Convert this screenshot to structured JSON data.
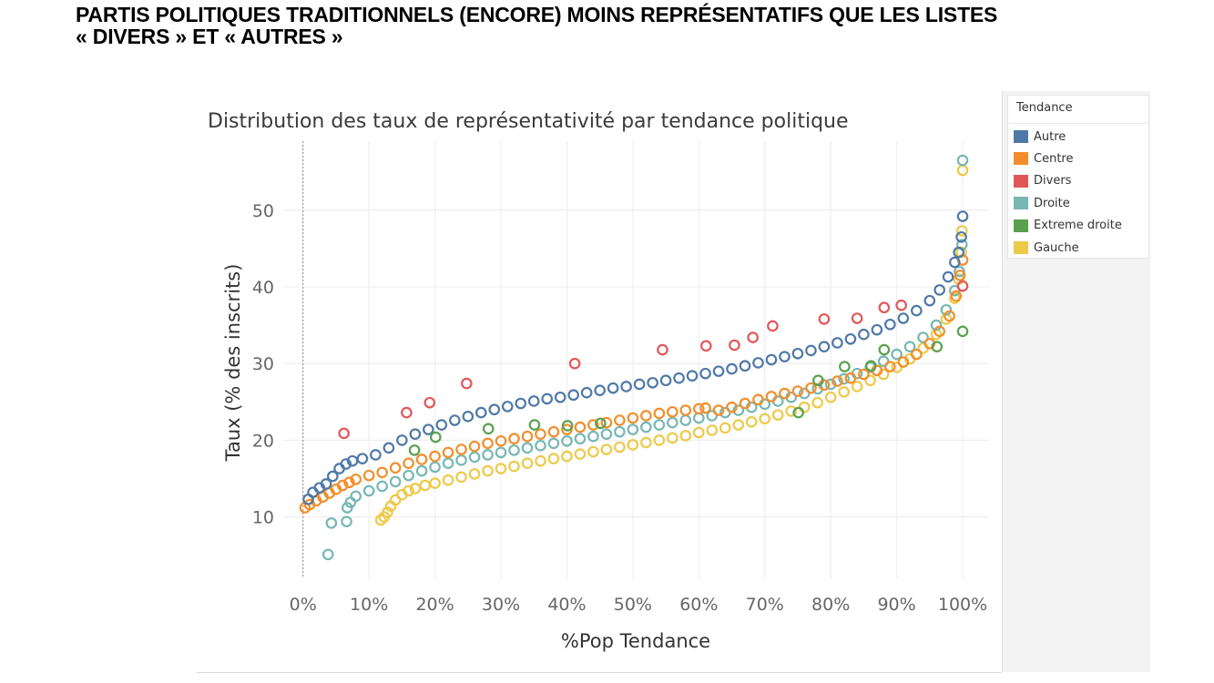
{
  "slide": {
    "title_line1": "PARTIS POLITIQUES TRADITIONNELS (ENCORE) MOINS REPRÉSENTATIFS QUE LES LISTES",
    "title_line2": "« DIVERS » ET « AUTRES »"
  },
  "legend": {
    "title": "Tendance"
  },
  "chart_data": {
    "type": "scatter",
    "title": "Distribution des taux de représentativité par tendance politique",
    "xlabel": "%Pop Tendance",
    "ylabel": "Taux (% des inscrits)",
    "xlim": [
      -3,
      104
    ],
    "ylim": [
      2,
      59
    ],
    "x_ticks": [
      0,
      10,
      20,
      30,
      40,
      50,
      60,
      70,
      80,
      90,
      100
    ],
    "x_tick_labels": [
      "0%",
      "10%",
      "20%",
      "30%",
      "40%",
      "50%",
      "60%",
      "70%",
      "80%",
      "90%",
      "100%"
    ],
    "y_ticks": [
      10,
      20,
      30,
      40,
      50
    ],
    "y_tick_labels": [
      "10",
      "20",
      "30",
      "40",
      "50"
    ],
    "grid": true,
    "reference_line_x": 0,
    "legend_position": "right",
    "marker": "open-circle",
    "series": [
      {
        "name": "Gauche",
        "color": "#edc948",
        "points": [
          [
            11.8,
            9.6
          ],
          [
            12.3,
            10.0
          ],
          [
            12.8,
            10.6
          ],
          [
            13.3,
            11.4
          ],
          [
            14,
            12.2
          ],
          [
            15,
            12.9
          ],
          [
            16,
            13.4
          ],
          [
            17,
            13.7
          ],
          [
            18.5,
            14.1
          ],
          [
            20,
            14.4
          ],
          [
            22,
            14.8
          ],
          [
            24,
            15.2
          ],
          [
            26,
            15.6
          ],
          [
            28,
            16.0
          ],
          [
            30,
            16.3
          ],
          [
            32,
            16.6
          ],
          [
            34,
            17.0
          ],
          [
            36,
            17.3
          ],
          [
            38,
            17.6
          ],
          [
            40,
            17.9
          ],
          [
            42,
            18.2
          ],
          [
            44,
            18.5
          ],
          [
            46,
            18.8
          ],
          [
            48,
            19.1
          ],
          [
            50,
            19.4
          ],
          [
            52,
            19.7
          ],
          [
            54,
            20.0
          ],
          [
            56,
            20.3
          ],
          [
            58,
            20.6
          ],
          [
            60,
            21.0
          ],
          [
            62,
            21.3
          ],
          [
            64,
            21.6
          ],
          [
            66,
            22.0
          ],
          [
            68,
            22.4
          ],
          [
            70,
            22.8
          ],
          [
            72,
            23.3
          ],
          [
            74,
            23.8
          ],
          [
            76,
            24.3
          ],
          [
            78,
            24.9
          ],
          [
            80,
            25.6
          ],
          [
            82,
            26.3
          ],
          [
            84,
            27.0
          ],
          [
            86,
            27.8
          ],
          [
            88,
            28.6
          ],
          [
            90,
            29.5
          ],
          [
            92,
            30.6
          ],
          [
            94,
            32.0
          ],
          [
            96,
            33.8
          ],
          [
            97.5,
            35.8
          ],
          [
            98.8,
            38.5
          ],
          [
            99.4,
            41.0
          ],
          [
            99.8,
            44.5
          ],
          [
            99.9,
            47.3
          ],
          [
            100,
            55.2
          ]
        ]
      },
      {
        "name": "Droite",
        "color": "#76b7b2",
        "points": [
          [
            3.8,
            5.1
          ],
          [
            4.3,
            9.2
          ],
          [
            6.6,
            9.4
          ],
          [
            6.7,
            11.2
          ],
          [
            7.2,
            11.9
          ],
          [
            8,
            12.7
          ],
          [
            10,
            13.4
          ],
          [
            12,
            14.0
          ],
          [
            14,
            14.6
          ],
          [
            16,
            15.4
          ],
          [
            18,
            16.0
          ],
          [
            20,
            16.5
          ],
          [
            22,
            17.0
          ],
          [
            24,
            17.4
          ],
          [
            26,
            17.8
          ],
          [
            28,
            18.1
          ],
          [
            30,
            18.4
          ],
          [
            32,
            18.7
          ],
          [
            34,
            19.0
          ],
          [
            36,
            19.3
          ],
          [
            38,
            19.6
          ],
          [
            40,
            19.9
          ],
          [
            42,
            20.2
          ],
          [
            44,
            20.5
          ],
          [
            46,
            20.8
          ],
          [
            48,
            21.1
          ],
          [
            50,
            21.4
          ],
          [
            52,
            21.7
          ],
          [
            54,
            22.0
          ],
          [
            56,
            22.3
          ],
          [
            58,
            22.6
          ],
          [
            60,
            22.9
          ],
          [
            62,
            23.2
          ],
          [
            64,
            23.6
          ],
          [
            66,
            23.9
          ],
          [
            68,
            24.3
          ],
          [
            70,
            24.7
          ],
          [
            72,
            25.1
          ],
          [
            74,
            25.6
          ],
          [
            76,
            26.1
          ],
          [
            78,
            26.7
          ],
          [
            80,
            27.3
          ],
          [
            82,
            28.0
          ],
          [
            84,
            28.7
          ],
          [
            86,
            29.5
          ],
          [
            88,
            30.3
          ],
          [
            90,
            31.2
          ],
          [
            92,
            32.2
          ],
          [
            94,
            33.4
          ],
          [
            96,
            35.0
          ],
          [
            97.5,
            37.0
          ],
          [
            98.8,
            39.5
          ],
          [
            99.5,
            42.0
          ],
          [
            99.9,
            45.5
          ],
          [
            100,
            56.5
          ]
        ]
      },
      {
        "name": "Centre",
        "color": "#f28e2b",
        "points": [
          [
            0.3,
            11.2
          ],
          [
            1,
            11.6
          ],
          [
            2,
            12.1
          ],
          [
            3,
            12.6
          ],
          [
            4,
            13.1
          ],
          [
            5,
            13.6
          ],
          [
            6,
            14.1
          ],
          [
            7,
            14.5
          ],
          [
            8,
            14.9
          ],
          [
            10,
            15.4
          ],
          [
            12,
            15.8
          ],
          [
            14,
            16.4
          ],
          [
            16,
            17.0
          ],
          [
            18,
            17.5
          ],
          [
            20,
            17.9
          ],
          [
            22,
            18.4
          ],
          [
            24,
            18.8
          ],
          [
            26,
            19.2
          ],
          [
            28,
            19.6
          ],
          [
            30,
            19.9
          ],
          [
            32,
            20.2
          ],
          [
            34,
            20.5
          ],
          [
            36,
            20.8
          ],
          [
            38,
            21.1
          ],
          [
            40,
            21.4
          ],
          [
            42,
            21.7
          ],
          [
            44,
            22.0
          ],
          [
            46,
            22.3
          ],
          [
            48,
            22.6
          ],
          [
            50,
            22.9
          ],
          [
            52,
            23.2
          ],
          [
            54,
            23.5
          ],
          [
            56,
            23.7
          ],
          [
            58,
            23.9
          ],
          [
            60,
            24.1
          ],
          [
            61,
            24.2
          ],
          [
            63,
            23.9
          ],
          [
            65,
            24.3
          ],
          [
            67,
            24.8
          ],
          [
            69,
            25.3
          ],
          [
            71,
            25.7
          ],
          [
            73,
            26.1
          ],
          [
            75,
            26.4
          ],
          [
            77,
            26.8
          ],
          [
            79,
            27.2
          ],
          [
            81,
            27.7
          ],
          [
            83,
            28.1
          ],
          [
            85,
            28.6
          ],
          [
            87,
            29.1
          ],
          [
            89,
            29.6
          ],
          [
            91,
            30.2
          ],
          [
            93,
            31.2
          ],
          [
            95,
            32.6
          ],
          [
            96.5,
            34.2
          ],
          [
            98,
            36.2
          ],
          [
            99,
            38.8
          ],
          [
            99.6,
            41.5
          ],
          [
            100,
            43.5
          ]
        ]
      },
      {
        "name": "Autre",
        "color": "#4e79a7",
        "points": [
          [
            0.8,
            12.3
          ],
          [
            1.5,
            13.2
          ],
          [
            2.5,
            13.8
          ],
          [
            3.5,
            14.3
          ],
          [
            4.5,
            15.3
          ],
          [
            5.5,
            16.3
          ],
          [
            6.5,
            16.9
          ],
          [
            7.5,
            17.3
          ],
          [
            9,
            17.6
          ],
          [
            11,
            18.1
          ],
          [
            13,
            19.0
          ],
          [
            15,
            20.0
          ],
          [
            17,
            20.8
          ],
          [
            19,
            21.4
          ],
          [
            21,
            22.0
          ],
          [
            23,
            22.6
          ],
          [
            25,
            23.1
          ],
          [
            27,
            23.6
          ],
          [
            29,
            24.0
          ],
          [
            31,
            24.4
          ],
          [
            33,
            24.8
          ],
          [
            35,
            25.1
          ],
          [
            37,
            25.4
          ],
          [
            39,
            25.6
          ],
          [
            41,
            25.9
          ],
          [
            43,
            26.2
          ],
          [
            45,
            26.5
          ],
          [
            47,
            26.8
          ],
          [
            49,
            27.0
          ],
          [
            51,
            27.3
          ],
          [
            53,
            27.5
          ],
          [
            55,
            27.8
          ],
          [
            57,
            28.1
          ],
          [
            59,
            28.4
          ],
          [
            61,
            28.7
          ],
          [
            63,
            29.0
          ],
          [
            65,
            29.3
          ],
          [
            67,
            29.7
          ],
          [
            69,
            30.1
          ],
          [
            71,
            30.5
          ],
          [
            73,
            30.9
          ],
          [
            75,
            31.3
          ],
          [
            77,
            31.7
          ],
          [
            79,
            32.2
          ],
          [
            81,
            32.7
          ],
          [
            83,
            33.2
          ],
          [
            85,
            33.8
          ],
          [
            87,
            34.4
          ],
          [
            89,
            35.1
          ],
          [
            91,
            35.9
          ],
          [
            93,
            36.9
          ],
          [
            95,
            38.2
          ],
          [
            96.5,
            39.6
          ],
          [
            97.8,
            41.3
          ],
          [
            98.8,
            43.2
          ],
          [
            99.4,
            44.5
          ],
          [
            99.8,
            46.5
          ],
          [
            100,
            49.2
          ]
        ]
      },
      {
        "name": "Extreme droite",
        "color": "#59a14f",
        "points": [
          [
            16.9,
            18.7
          ],
          [
            20.1,
            20.4
          ],
          [
            28.1,
            21.5
          ],
          [
            35.1,
            22.0
          ],
          [
            40.1,
            21.9
          ],
          [
            45.1,
            22.2
          ],
          [
            75.1,
            23.6
          ],
          [
            78.1,
            27.8
          ],
          [
            82.1,
            29.6
          ],
          [
            86.1,
            29.7
          ],
          [
            88.1,
            31.8
          ],
          [
            96.1,
            32.2
          ],
          [
            100,
            34.2
          ]
        ]
      },
      {
        "name": "Divers",
        "color": "#e15759",
        "points": [
          [
            6.2,
            20.9
          ],
          [
            15.7,
            23.6
          ],
          [
            19.2,
            24.9
          ],
          [
            24.8,
            27.4
          ],
          [
            41.2,
            30.0
          ],
          [
            54.5,
            31.8
          ],
          [
            61.1,
            32.3
          ],
          [
            65.4,
            32.4
          ],
          [
            68.2,
            33.4
          ],
          [
            71.2,
            34.9
          ],
          [
            79,
            35.8
          ],
          [
            84,
            35.9
          ],
          [
            88.1,
            37.3
          ],
          [
            90.7,
            37.6
          ],
          [
            100,
            40.1
          ]
        ]
      }
    ]
  }
}
